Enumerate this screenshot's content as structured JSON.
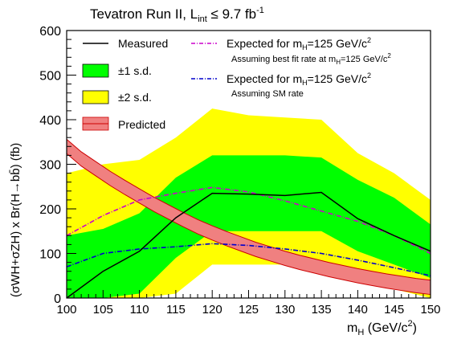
{
  "chart_data": {
    "type": "line",
    "title": "Tevatron Run II,  L",
    "title_sub": "int",
    "title_tail": " ≤ 9.7 fb",
    "title_sup": "-1",
    "xlabel_main": "m",
    "xlabel_sub": "H",
    "xlabel_tail": " (GeV/c",
    "xlabel_sup": "2",
    "xlabel_end": ")",
    "ylabel": "(σWH+σZH) x Br(H→bb̄) (fb)",
    "xlim": [
      100,
      150
    ],
    "ylim": [
      0,
      600
    ],
    "xticks": [
      "100",
      "105",
      "110",
      "115",
      "120",
      "125",
      "130",
      "135",
      "140",
      "145",
      "150"
    ],
    "yticks": [
      "0",
      "100",
      "200",
      "300",
      "400",
      "500",
      "600"
    ],
    "x": [
      100,
      105,
      110,
      115,
      120,
      125,
      130,
      135,
      140,
      145,
      150
    ],
    "band_2sd_upper": [
      280,
      300,
      310,
      360,
      425,
      410,
      405,
      400,
      325,
      280,
      220
    ],
    "band_2sd_lower": [
      0,
      0,
      0,
      10,
      75,
      75,
      75,
      75,
      40,
      20,
      0
    ],
    "band_1sd_upper": [
      140,
      155,
      190,
      270,
      320,
      320,
      320,
      315,
      265,
      225,
      165
    ],
    "band_1sd_lower": [
      0,
      0,
      10,
      90,
      150,
      150,
      150,
      150,
      105,
      75,
      45
    ],
    "measured": [
      0,
      60,
      105,
      180,
      235,
      233,
      230,
      237,
      178,
      140,
      105
    ],
    "predicted_x": [
      100,
      102,
      104,
      106,
      108,
      110,
      112,
      114,
      116,
      118,
      120,
      122,
      124,
      126,
      128,
      130,
      132,
      134,
      136,
      138,
      140,
      142,
      144,
      146,
      148,
      150
    ],
    "predicted": [
      340,
      312,
      290,
      268,
      248,
      229,
      210,
      193,
      176,
      160,
      146,
      133,
      121,
      109,
      99,
      89,
      80,
      72,
      64,
      57,
      50,
      44,
      38,
      33,
      28,
      24
    ],
    "predicted_width": 16,
    "expected_bestfit": [
      140,
      185,
      220,
      235,
      248,
      238,
      218,
      195,
      172,
      140,
      100
    ],
    "expected_sm": [
      70,
      100,
      110,
      115,
      122,
      118,
      110,
      100,
      85,
      68,
      50
    ],
    "legend": {
      "measured": "Measured",
      "sd1": "±1 s.d.",
      "sd2": "±2 s.d.",
      "predicted": "Predicted",
      "exp1_main": "Expected for m",
      "exp1_sub": "H",
      "exp1_tail": "=125 GeV/c",
      "exp1_sup": "2",
      "exp1_note_main": "Assuming best fit rate at m",
      "exp1_note_sub": "H",
      "exp1_note_tail": "=125 GeV/c",
      "exp1_note_sup": "2",
      "exp2_main": "Expected for m",
      "exp2_sub": "H",
      "exp2_tail": "=125 GeV/c",
      "exp2_sup": "2",
      "exp2_note": "Assuming SM rate"
    },
    "colors": {
      "band_2sd": "#ffff00",
      "band_1sd": "#00ff00",
      "predicted_fill": "#f08080",
      "predicted_line": "#cc0000",
      "measured": "#000000",
      "expected_bestfit": "#cc00cc",
      "expected_sm": "#0000cc"
    }
  }
}
